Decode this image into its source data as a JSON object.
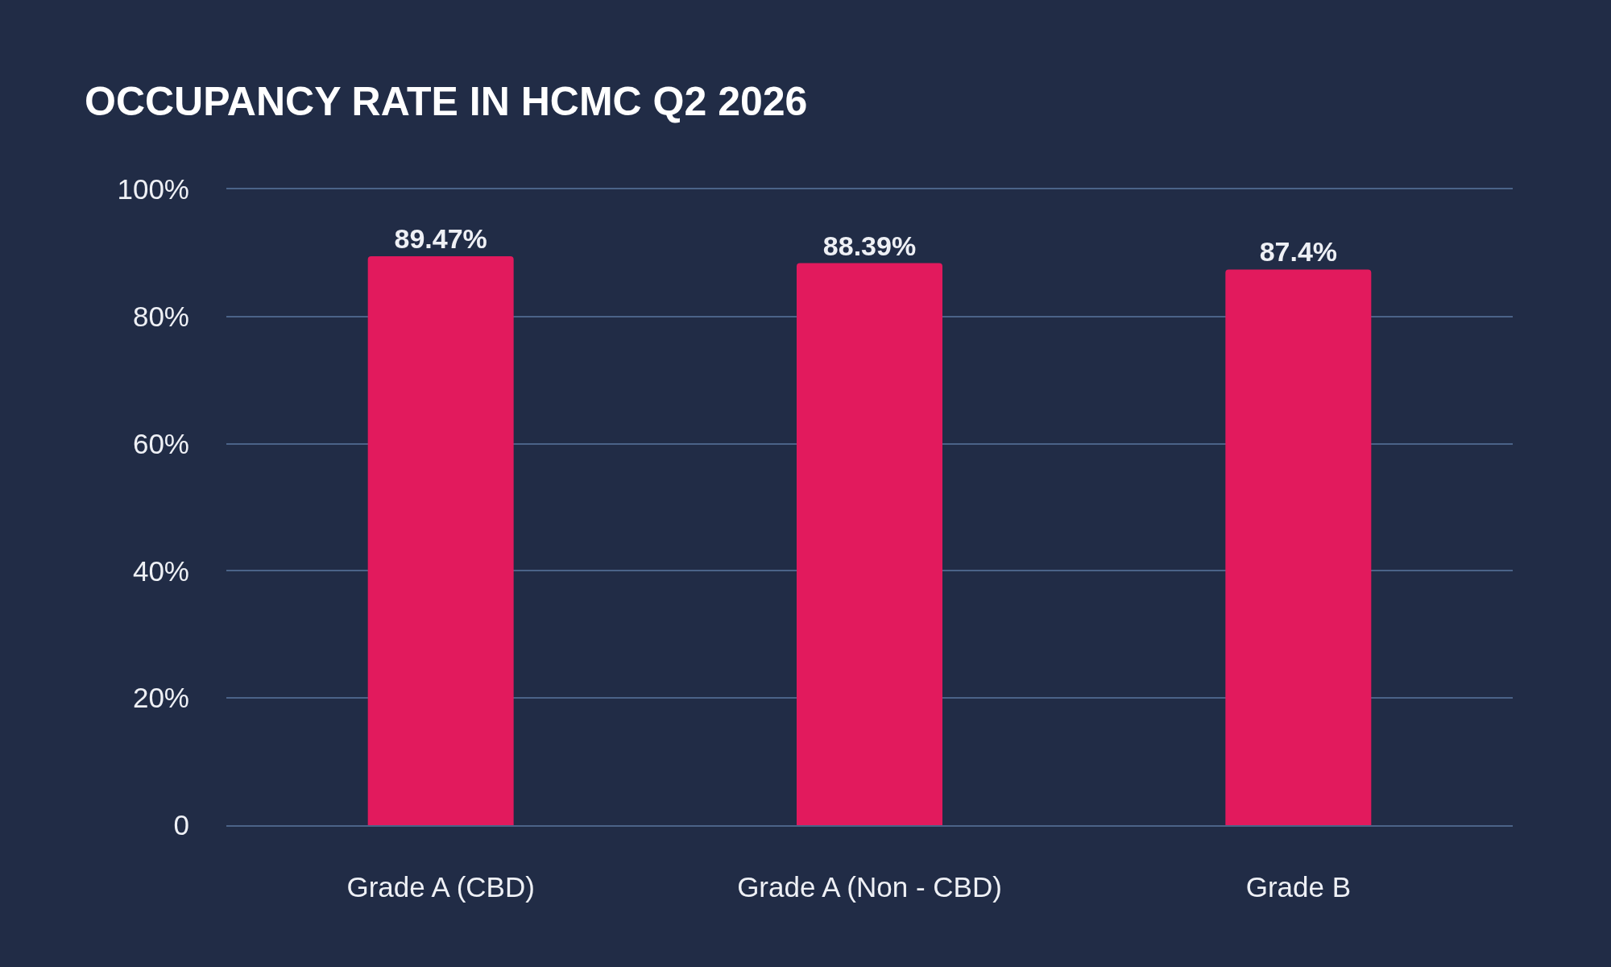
{
  "chart_data": {
    "type": "bar",
    "title": "OCCUPANCY RATE IN HCMC Q2 2026",
    "categories": [
      "Grade A (CBD)",
      "Grade A (Non - CBD)",
      "Grade B"
    ],
    "values": [
      89.47,
      88.39,
      87.4
    ],
    "color": "#e21a5d",
    "value_labels": [
      "89.47%",
      "88.39%",
      "87.4%"
    ],
    "ylim": [
      0,
      100
    ],
    "yticks": [
      0,
      {
        "value": 20,
        "label": "20%"
      },
      {
        "value": 40,
        "label": "40%"
      },
      {
        "value": 60,
        "label": "60%"
      },
      {
        "value": 80,
        "label": "80%"
      },
      {
        "value": 100,
        "label": "100%"
      }
    ],
    "grid": "y",
    "legend": false
  }
}
